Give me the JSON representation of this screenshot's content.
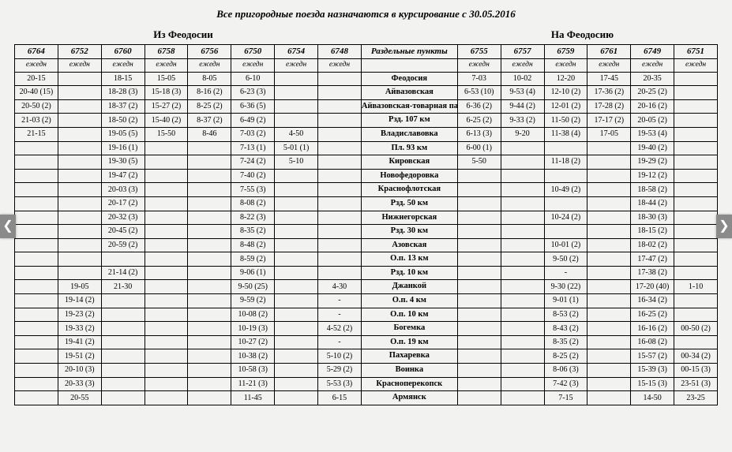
{
  "title": "Все пригородные поезда назначаются в курсирование с 30.05.2016",
  "section_left": "Из Феодосии",
  "section_right": "На Феодосию",
  "freq_label": "ежедн",
  "left_trains": [
    "6764",
    "6752",
    "6760",
    "6758",
    "6756",
    "6750",
    "6754",
    "6748"
  ],
  "right_trains": [
    "6755",
    "6757",
    "6759",
    "6761",
    "6749",
    "6751"
  ],
  "stations": [
    "Феодосия",
    "Айвазовская",
    "Айвазовская-товарная парк",
    "Рзд. 107 км",
    "Владиславовка",
    "Пл. 93 км",
    "Кировская",
    "Новофедоровка",
    "Краснофлотская",
    "Рзд. 50 км",
    "Нижнегорская",
    "Рзд. 30 км",
    "Азовская",
    "О.п. 13 км",
    "Рзд. 10 км",
    "Джанкой",
    "О.п. 4 км",
    "О.п. 10 км",
    "Богемка",
    "О.п. 19 км",
    "Пахаревка",
    "Воинка",
    "Красноперекопск",
    "Армянск"
  ],
  "left_cells": [
    [
      "20-15",
      "",
      "18-15",
      "15-05",
      "8-05",
      "6-10",
      "",
      ""
    ],
    [
      "20-40 (15)",
      "",
      "18-28 (3)",
      "15-18 (3)",
      "8-16 (2)",
      "6-23 (3)",
      "",
      ""
    ],
    [
      "20-50 (2)",
      "",
      "18-37 (2)",
      "15-27 (2)",
      "8-25 (2)",
      "6-36 (5)",
      "",
      ""
    ],
    [
      "21-03 (2)",
      "",
      "18-50 (2)",
      "15-40 (2)",
      "8-37 (2)",
      "6-49 (2)",
      "",
      ""
    ],
    [
      "21-15",
      "",
      "19-05 (5)",
      "15-50",
      "8-46",
      "7-03 (2)",
      "4-50",
      ""
    ],
    [
      "",
      "",
      "19-16 (1)",
      "",
      "",
      "7-13 (1)",
      "5-01 (1)",
      ""
    ],
    [
      "",
      "",
      "19-30 (5)",
      "",
      "",
      "7-24 (2)",
      "5-10",
      ""
    ],
    [
      "",
      "",
      "19-47 (2)",
      "",
      "",
      "7-40 (2)",
      "",
      ""
    ],
    [
      "",
      "",
      "20-03 (3)",
      "",
      "",
      "7-55 (3)",
      "",
      ""
    ],
    [
      "",
      "",
      "20-17 (2)",
      "",
      "",
      "8-08 (2)",
      "",
      ""
    ],
    [
      "",
      "",
      "20-32 (3)",
      "",
      "",
      "8-22 (3)",
      "",
      ""
    ],
    [
      "",
      "",
      "20-45 (2)",
      "",
      "",
      "8-35 (2)",
      "",
      ""
    ],
    [
      "",
      "",
      "20-59 (2)",
      "",
      "",
      "8-48 (2)",
      "",
      ""
    ],
    [
      "",
      "",
      "",
      "",
      "",
      "8-59 (2)",
      "",
      ""
    ],
    [
      "",
      "",
      "21-14 (2)",
      "",
      "",
      "9-06 (1)",
      "",
      ""
    ],
    [
      "",
      "19-05",
      "21-30",
      "",
      "",
      "9-50 (25)",
      "",
      "4-30"
    ],
    [
      "",
      "19-14 (2)",
      "",
      "",
      "",
      "9-59 (2)",
      "",
      "-"
    ],
    [
      "",
      "19-23 (2)",
      "",
      "",
      "",
      "10-08 (2)",
      "",
      "-"
    ],
    [
      "",
      "19-33 (2)",
      "",
      "",
      "",
      "10-19 (3)",
      "",
      "4-52 (2)"
    ],
    [
      "",
      "19-41 (2)",
      "",
      "",
      "",
      "10-27 (2)",
      "",
      "-"
    ],
    [
      "",
      "19-51 (2)",
      "",
      "",
      "",
      "10-38 (2)",
      "",
      "5-10 (2)"
    ],
    [
      "",
      "20-10 (3)",
      "",
      "",
      "",
      "10-58 (3)",
      "",
      "5-29 (2)"
    ],
    [
      "",
      "20-33 (3)",
      "",
      "",
      "",
      "11-21 (3)",
      "",
      "5-53 (3)"
    ],
    [
      "",
      "20-55",
      "",
      "",
      "",
      "11-45",
      "",
      "6-15"
    ]
  ],
  "right_cells": [
    [
      "7-03",
      "10-02",
      "12-20",
      "17-45",
      "20-35",
      ""
    ],
    [
      "6-53 (10)",
      "9-53 (4)",
      "12-10 (2)",
      "17-36 (2)",
      "20-25 (2)",
      ""
    ],
    [
      "6-36 (2)",
      "9-44 (2)",
      "12-01 (2)",
      "17-28 (2)",
      "20-16 (2)",
      ""
    ],
    [
      "6-25 (2)",
      "9-33 (2)",
      "11-50 (2)",
      "17-17 (2)",
      "20-05 (2)",
      ""
    ],
    [
      "6-13 (3)",
      "9-20",
      "11-38 (4)",
      "17-05",
      "19-53 (4)",
      ""
    ],
    [
      "6-00 (1)",
      "",
      "",
      "",
      "19-40 (2)",
      ""
    ],
    [
      "5-50",
      "",
      "11-18 (2)",
      "",
      "19-29 (2)",
      ""
    ],
    [
      "",
      "",
      "",
      "",
      "19-12 (2)",
      ""
    ],
    [
      "",
      "",
      "10-49 (2)",
      "",
      "18-58 (2)",
      ""
    ],
    [
      "",
      "",
      "",
      "",
      "18-44 (2)",
      ""
    ],
    [
      "",
      "",
      "10-24 (2)",
      "",
      "18-30 (3)",
      ""
    ],
    [
      "",
      "",
      "",
      "",
      "18-15 (2)",
      ""
    ],
    [
      "",
      "",
      "10-01 (2)",
      "",
      "18-02 (2)",
      ""
    ],
    [
      "",
      "",
      "9-50 (2)",
      "",
      "17-47 (2)",
      ""
    ],
    [
      "",
      "",
      "-",
      "",
      "17-38 (2)",
      ""
    ],
    [
      "",
      "",
      "9-30 (22)",
      "",
      "17-20 (40)",
      "1-10"
    ],
    [
      "",
      "",
      "9-01 (1)",
      "",
      "16-34 (2)",
      ""
    ],
    [
      "",
      "",
      "8-53 (2)",
      "",
      "16-25 (2)",
      ""
    ],
    [
      "",
      "",
      "8-43 (2)",
      "",
      "16-16 (2)",
      "00-50 (2)"
    ],
    [
      "",
      "",
      "8-35 (2)",
      "",
      "16-08 (2)",
      ""
    ],
    [
      "",
      "",
      "8-25 (2)",
      "",
      "15-57 (2)",
      "00-34 (2)"
    ],
    [
      "",
      "",
      "8-06 (3)",
      "",
      "15-39 (3)",
      "00-15 (3)"
    ],
    [
      "",
      "",
      "7-42 (3)",
      "",
      "15-15 (3)",
      "23-51 (3)"
    ],
    [
      "",
      "",
      "7-15",
      "",
      "14-50",
      "23-25"
    ]
  ]
}
